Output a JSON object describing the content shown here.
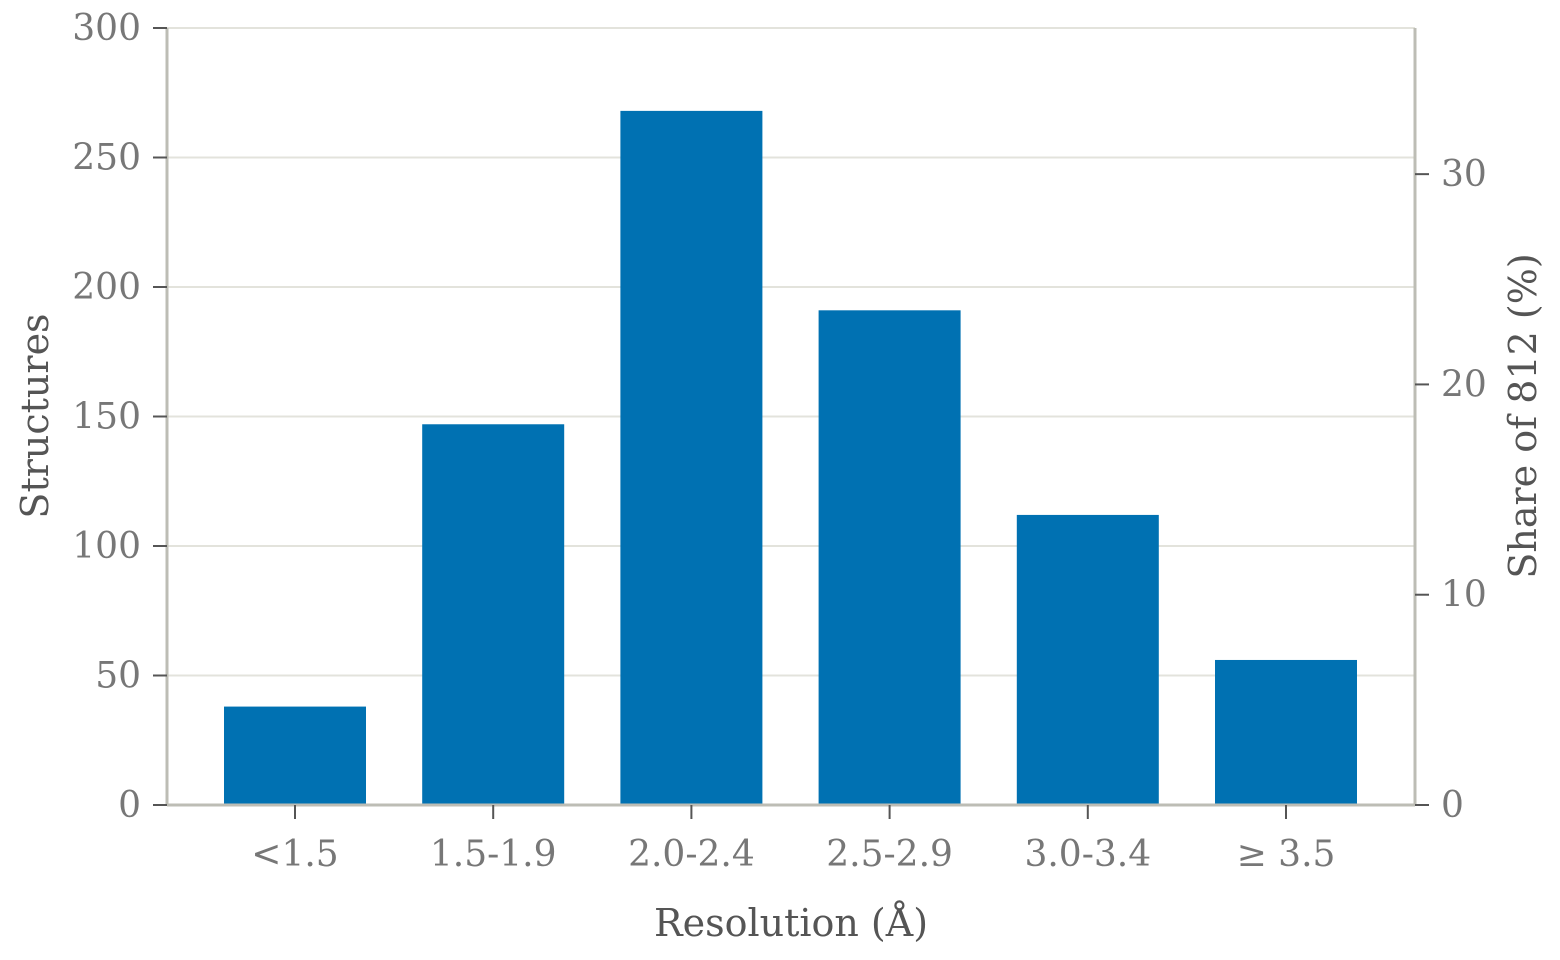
{
  "chart_data": {
    "type": "bar",
    "categories": [
      "<1.5",
      "1.5-1.9",
      "2.0-2.4",
      "2.5-2.9",
      "3.0-3.4",
      "≥ 3.5"
    ],
    "values": [
      38,
      147,
      268,
      191,
      112,
      56
    ],
    "xlabel": "Resolution (Å)",
    "ylabel": "Structures",
    "y2label": "Share of 812 (%)",
    "ylim": [
      0,
      300
    ],
    "y2lim": [
      0,
      36.95
    ],
    "yticks": [
      0,
      50,
      100,
      150,
      200,
      250,
      300
    ],
    "y2ticks": [
      0,
      10,
      20,
      30
    ],
    "grid": true,
    "colors": {
      "bar": "#0071b2",
      "axis": "#bdbdb5",
      "grid": "#e3e3dc",
      "tick_text": "#777777",
      "title_text": "#555555"
    }
  }
}
